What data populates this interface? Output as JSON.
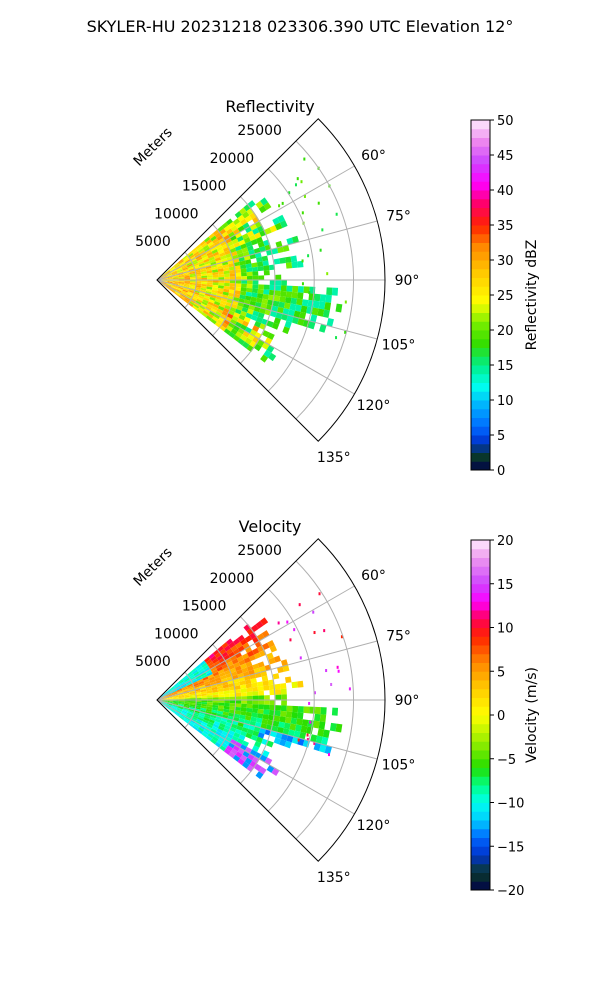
{
  "suptitle": "SKYLER-HU  20231218  023306.390 UTC Elevation 12°",
  "chart_data": [
    {
      "type": "heatmap",
      "projection": "polar-sector",
      "title": "Reflectivity",
      "range_label": "Meters",
      "range_ticks": [
        5000,
        10000,
        15000,
        20000,
        25000
      ],
      "range_tick_labels": [
        "5000",
        "10000",
        "15000",
        "20000",
        "25000"
      ],
      "range_max": 29000,
      "azimuth_range_deg": [
        45,
        135
      ],
      "azimuth_ticks_deg": [
        60,
        75,
        90,
        105,
        120,
        135
      ],
      "azimuth_tick_labels": [
        "60°",
        "75°",
        "90°",
        "105°",
        "120°",
        "135°"
      ],
      "grid": true,
      "colorbar": {
        "label": "Reflectivity dBZ",
        "min": 0,
        "max": 50,
        "ticks": [
          0,
          5,
          10,
          15,
          20,
          25,
          30,
          35,
          40,
          45,
          50
        ],
        "tick_labels": [
          "0",
          "5",
          "10",
          "15",
          "20",
          "25",
          "30",
          "35",
          "40",
          "45",
          "50"
        ],
        "stops": [
          [
            0,
            "#00004a"
          ],
          [
            2,
            "#0a3a2a"
          ],
          [
            4,
            "#0033cc"
          ],
          [
            6,
            "#0066ff"
          ],
          [
            9,
            "#00aaff"
          ],
          [
            12,
            "#00ffee"
          ],
          [
            15,
            "#00ee88"
          ],
          [
            18,
            "#33dd00"
          ],
          [
            21,
            "#77ee00"
          ],
          [
            24,
            "#ffff00"
          ],
          [
            28,
            "#ffcc00"
          ],
          [
            32,
            "#ff8800"
          ],
          [
            35,
            "#ff2200"
          ],
          [
            38,
            "#ff0066"
          ],
          [
            41,
            "#ff00ff"
          ],
          [
            44,
            "#cc44ff"
          ],
          [
            47,
            "#ee88ee"
          ],
          [
            50,
            "#ffeeff"
          ]
        ]
      },
      "echo_region": {
        "description_values": "dominant reflectivity 15–30 dBZ, peaks ~35 dBZ",
        "value_min": 14,
        "value_max": 35
      }
    },
    {
      "type": "heatmap",
      "projection": "polar-sector",
      "title": "Velocity",
      "range_label": "Meters",
      "range_ticks": [
        5000,
        10000,
        15000,
        20000,
        25000
      ],
      "range_tick_labels": [
        "5000",
        "10000",
        "15000",
        "20000",
        "25000"
      ],
      "range_max": 29000,
      "azimuth_range_deg": [
        45,
        135
      ],
      "azimuth_ticks_deg": [
        60,
        75,
        90,
        105,
        120,
        135
      ],
      "azimuth_tick_labels": [
        "60°",
        "75°",
        "90°",
        "105°",
        "120°",
        "135°"
      ],
      "grid": true,
      "colorbar": {
        "label": "Velocity (m/s)",
        "min": -20,
        "max": 20,
        "ticks": [
          -20,
          -15,
          -10,
          -5,
          0,
          5,
          10,
          15,
          20
        ],
        "tick_labels": [
          "−20",
          "−15",
          "−10",
          "−5",
          "0",
          "5",
          "10",
          "15",
          "20"
        ],
        "stops": [
          [
            -20,
            "#00004a"
          ],
          [
            -18,
            "#0a3a2a"
          ],
          [
            -16,
            "#0033cc"
          ],
          [
            -14,
            "#0066ff"
          ],
          [
            -12,
            "#00ccff"
          ],
          [
            -10,
            "#00ffee"
          ],
          [
            -8,
            "#00ff88"
          ],
          [
            -6,
            "#22dd00"
          ],
          [
            -3,
            "#99ee00"
          ],
          [
            0,
            "#ffff00"
          ],
          [
            3,
            "#ffcc00"
          ],
          [
            6,
            "#ff8800"
          ],
          [
            9,
            "#ff2200"
          ],
          [
            11,
            "#ff0055"
          ],
          [
            13,
            "#ff00ff"
          ],
          [
            15,
            "#cc44ff"
          ],
          [
            18,
            "#ee99ee"
          ],
          [
            20,
            "#ffeeff"
          ]
        ]
      },
      "echo_region": {
        "description_values": "receding 0–12 m/s north of 90°, approaching -5 to -12 m/s south, aliased ±15 edges",
        "value_min": -14,
        "value_max": 16
      }
    }
  ]
}
